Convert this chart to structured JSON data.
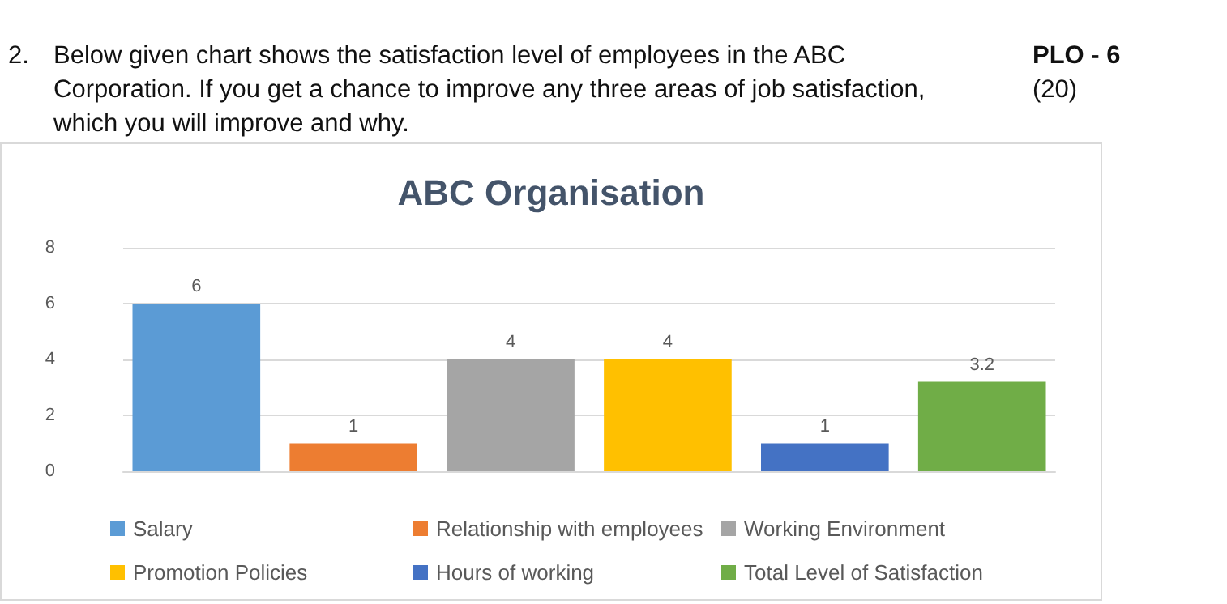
{
  "chart_data": {
    "type": "bar",
    "title": "ABC Organisation",
    "annotations": [
      "2.",
      "Below given chart shows the satisfaction level of employees in the ABC",
      "Corporation. If you get a chance to improve any three areas of job satisfaction,",
      "which you will improve and why.",
      "PLO - 6",
      "(20)"
    ],
    "categories": [
      null
    ],
    "series": [
      {
        "name": "Salary",
        "color": "#5b9bd5",
        "values": [
          6
        ]
      },
      {
        "name": "Relationship with employees",
        "color": "#ed7d31",
        "values": [
          1
        ]
      },
      {
        "name": "Working Environment",
        "color": "#a5a5a5",
        "values": [
          4
        ]
      },
      {
        "name": "Promotion Policies",
        "color": "#ffc000",
        "values": [
          4
        ]
      },
      {
        "name": "Hours of working",
        "color": "#4472c4",
        "values": [
          1
        ]
      },
      {
        "name": "Total Level of Satisfaction",
        "color": "#70ad47",
        "values": [
          3.2
        ]
      }
    ],
    "ylim": [
      0,
      8
    ],
    "yticks": [
      0,
      2,
      4,
      6,
      8
    ],
    "grid": "y",
    "legend": "bottom",
    "tick_labels": "y",
    "data_labels": true
  }
}
